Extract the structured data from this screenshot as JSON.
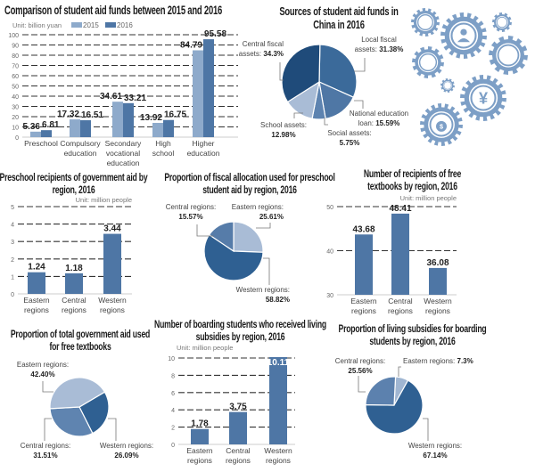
{
  "colors": {
    "light": "#8eaacb",
    "dark": "#4e76a5",
    "navy": "#1f4b7a",
    "mid": "#3b6a9a",
    "pale": "#a9bcd6",
    "gear": "#7d9fc6"
  },
  "gears": {
    "icons": [
      "person-icon",
      "yen-icon",
      "money-bag-icon"
    ]
  },
  "chart_data": [
    {
      "id": "c1",
      "type": "bar",
      "title": "Comparison of student aid funds between 2015 and 2016",
      "unit": "Unit: billion yuan",
      "categories": [
        "Preschool",
        "Compulsory education",
        "Secondary vocational education",
        "High school",
        "Higher education"
      ],
      "series": [
        {
          "name": "2015",
          "values": [
            5.36,
            17.32,
            34.61,
            13.92,
            84.79
          ]
        },
        {
          "name": "2016",
          "values": [
            6.81,
            16.51,
            33.21,
            16.75,
            95.58
          ]
        }
      ],
      "ylim": [
        0,
        100
      ],
      "yticks": [
        0,
        10,
        20,
        30,
        40,
        50,
        60,
        70,
        80,
        90,
        100
      ],
      "grid": true,
      "legend": "top"
    },
    {
      "id": "c2",
      "type": "pie",
      "title": "Sources of student aid funds in China in 2016",
      "slices": [
        {
          "label": "Local fiscal assets:",
          "value": 31.38,
          "text": "31.38%"
        },
        {
          "label": "National education loan:",
          "value": 15.59,
          "text": "15.59%"
        },
        {
          "label": "Social assets:",
          "value": 5.75,
          "text": "5.75%"
        },
        {
          "label": "School assets:",
          "value": 12.98,
          "text": "12.98%"
        },
        {
          "label": "Central fiscal assets:",
          "value": 34.3,
          "text": "34.3%"
        }
      ]
    },
    {
      "id": "c3",
      "type": "bar",
      "title": "Preschool recipients of government aid by region, 2016",
      "unit": "Unit: million people",
      "categories": [
        "Eastern regions",
        "Central regions",
        "Western regions"
      ],
      "values": [
        1.24,
        1.18,
        3.44
      ],
      "ylim": [
        0,
        5
      ],
      "yticks": [
        0,
        1,
        2,
        3,
        4,
        5
      ],
      "grid": true
    },
    {
      "id": "c4",
      "type": "pie",
      "title": "Proportion of fiscal allocation used for preschool student aid by region, 2016",
      "slices": [
        {
          "label": "Eastern regions:",
          "value": 25.61,
          "text": "25.61%"
        },
        {
          "label": "Western regions:",
          "value": 58.82,
          "text": "58.82%"
        },
        {
          "label": "Central regions:",
          "value": 15.57,
          "text": "15.57%"
        }
      ]
    },
    {
      "id": "c5",
      "type": "bar",
      "title": "Number of recipients of free textbooks by region, 2016",
      "unit": "Unit: million people",
      "categories": [
        "Eastern regions",
        "Central regions",
        "Western regions"
      ],
      "values": [
        43.68,
        48.41,
        36.08
      ],
      "ylim": [
        30,
        50
      ],
      "yticks": [
        30,
        40,
        50
      ],
      "grid": true
    },
    {
      "id": "c6",
      "type": "pie",
      "title": "Proportion of total government aid used for free textbooks",
      "slices": [
        {
          "label": "Western regions:",
          "value": 26.09,
          "text": "26.09%"
        },
        {
          "label": "Central regions:",
          "value": 31.51,
          "text": "31.51%"
        },
        {
          "label": "Eastern regions:",
          "value": 42.4,
          "text": "42.40%"
        }
      ]
    },
    {
      "id": "c7",
      "type": "bar",
      "title": "Number of boarding students who received living subsidies by region, 2016",
      "unit": "Unit: million people",
      "categories": [
        "Eastern regions",
        "Central regions",
        "Western regions"
      ],
      "values": [
        1.78,
        3.75,
        10.11
      ],
      "ylim": [
        0,
        10
      ],
      "yticks": [
        0,
        2,
        4,
        6,
        8,
        10
      ],
      "grid": true
    },
    {
      "id": "c8",
      "type": "pie",
      "title": "Proportion of living subsidies for boarding students by region, 2016",
      "slices": [
        {
          "label": "Eastern regions:",
          "value": 7.3,
          "text": "7.3%"
        },
        {
          "label": "Western regions:",
          "value": 67.14,
          "text": "67.14%"
        },
        {
          "label": "Central regions:",
          "value": 25.56,
          "text": "25.56%"
        }
      ]
    }
  ]
}
